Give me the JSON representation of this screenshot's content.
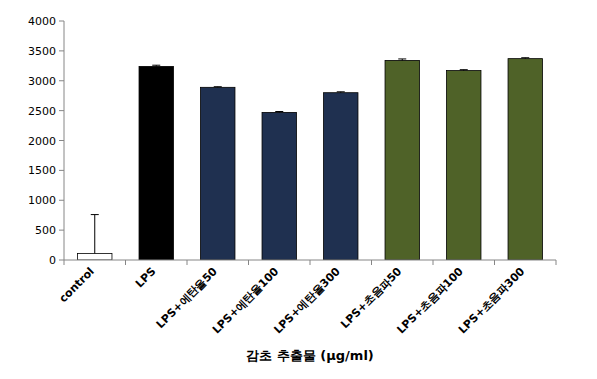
{
  "chart_data": {
    "type": "bar",
    "x_label": "감초 추출물 (μg/ml)",
    "categories": [
      "control",
      "LPS",
      "LPS+에탄올50",
      "LPS+에탄올100",
      "LPS+에탄올300",
      "LPS+초음파50",
      "LPS+초음파100",
      "LPS+초음파300"
    ],
    "values": [
      110,
      3240,
      2890,
      2470,
      2800,
      3340,
      3170,
      3370
    ],
    "errors": [
      650,
      20,
      10,
      15,
      15,
      25,
      15,
      15
    ],
    "colors": [
      "#ffffff",
      "#000000",
      "#1f3050",
      "#1f3050",
      "#1f3050",
      "#4f6228",
      "#4f6228",
      "#4f6228"
    ],
    "ylim": [
      0,
      4000
    ],
    "yticks": [
      0,
      500,
      1000,
      1500,
      2000,
      2500,
      3000,
      3500,
      4000
    ],
    "grid": false
  }
}
